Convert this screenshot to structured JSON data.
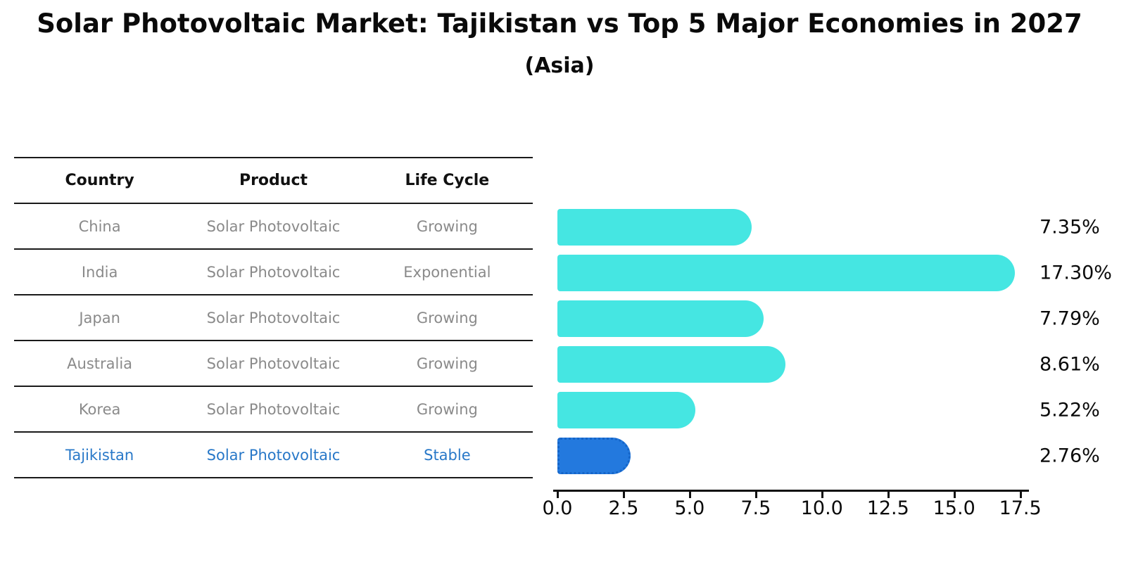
{
  "title": "Solar Photovoltaic Market: Tajikistan vs Top 5 Major Economies in 2027",
  "subtitle": "(Asia)",
  "table": {
    "headers": [
      "Country",
      "Product",
      "Life Cycle"
    ],
    "rows": [
      {
        "country": "China",
        "product": "Solar Photovoltaic",
        "life_cycle": "Growing",
        "highlight": false
      },
      {
        "country": "India",
        "product": "Solar Photovoltaic",
        "life_cycle": "Exponential",
        "highlight": false
      },
      {
        "country": "Japan",
        "product": "Solar Photovoltaic",
        "life_cycle": "Growing",
        "highlight": false
      },
      {
        "country": "Australia",
        "product": "Solar Photovoltaic",
        "life_cycle": "Growing",
        "highlight": false
      },
      {
        "country": "Korea",
        "product": "Solar Photovoltaic",
        "life_cycle": "Growing",
        "highlight": false
      },
      {
        "country": "Tajikistan",
        "product": "Solar Photovoltaic",
        "life_cycle": "Stable",
        "highlight": true
      }
    ]
  },
  "chart_data": {
    "type": "bar",
    "orientation": "horizontal",
    "title": "Solar Photovoltaic Market: Tajikistan vs Top 5 Major Economies in 2027",
    "subtitle": "(Asia)",
    "categories": [
      "China",
      "India",
      "Japan",
      "Australia",
      "Korea",
      "Tajikistan"
    ],
    "values": [
      7.35,
      17.3,
      7.79,
      8.61,
      5.22,
      2.76
    ],
    "value_labels": [
      "7.35%",
      "17.30%",
      "7.79%",
      "8.61%",
      "5.22%",
      "2.76%"
    ],
    "highlight_index": 5,
    "xlabel": "",
    "ylabel": "",
    "xlim": [
      0,
      17.75
    ],
    "x_ticks": [
      "0.0",
      "2.5",
      "5.0",
      "7.5",
      "10.0",
      "12.5",
      "15.0",
      "17.5"
    ],
    "grid": false,
    "legend": false,
    "colors": {
      "bar": "#45e6e2",
      "highlight_bar": "#2379de",
      "highlight_border": "#1565c8",
      "highlight_text": "#2878c8",
      "row_text": "#8a8a8a",
      "axis_text": "#0a0a0a"
    }
  }
}
